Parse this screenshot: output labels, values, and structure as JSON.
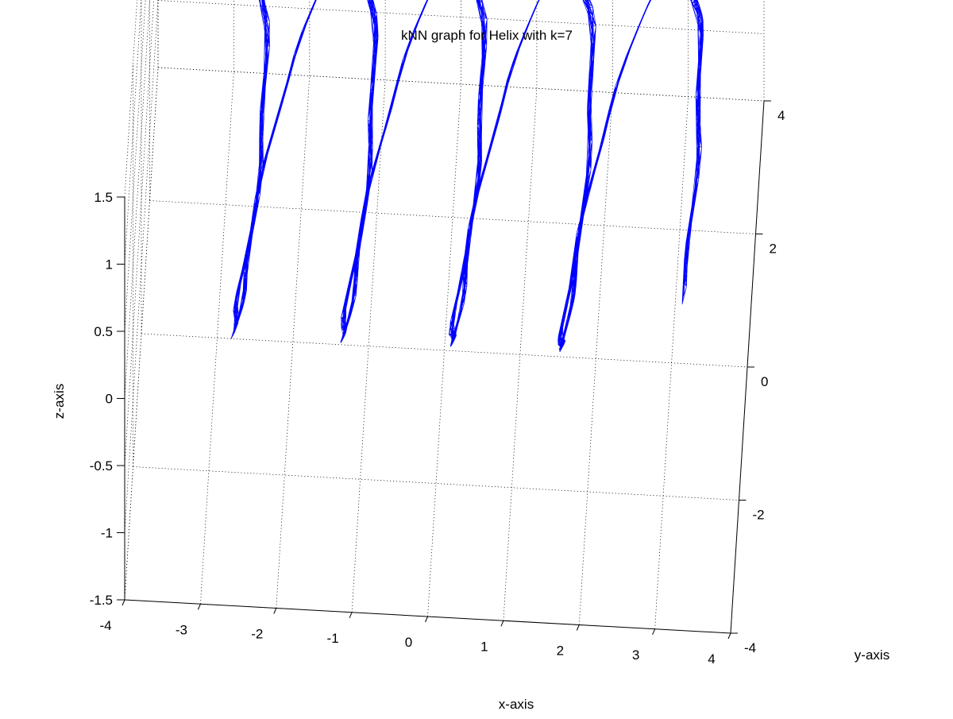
{
  "chart_data": {
    "type": "line",
    "title": "kNN graph for Helix with k=7",
    "xlabel": "x-axis",
    "ylabel": "y-axis",
    "zlabel": "z-axis",
    "xlim": [
      -4,
      4
    ],
    "ylim": [
      -4,
      4
    ],
    "zlim": [
      -1.5,
      1.5
    ],
    "xticks": [
      "-4",
      "-3",
      "-2",
      "-1",
      "0",
      "1",
      "2",
      "3",
      "4"
    ],
    "yticks": [
      "-4",
      "-2",
      "0",
      "2",
      "4"
    ],
    "zticks": [
      "-1.5",
      "-1",
      "-0.5",
      "0",
      "0.5",
      "1",
      "1.5"
    ],
    "grid": true,
    "line_color": "#0000ff",
    "series": [
      {
        "description_free": true,
        "points_xyz": []
      }
    ]
  }
}
